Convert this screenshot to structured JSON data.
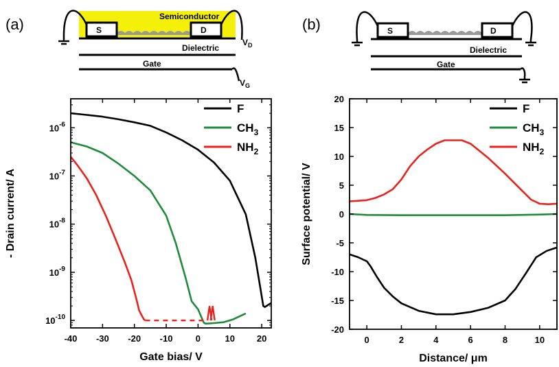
{
  "panel_a": {
    "label": "(a)",
    "device": {
      "semiconductor": "Semiconductor",
      "source": "S",
      "drain": "D",
      "dielectric": "Dielectric",
      "gate": "Gate",
      "vd": "V",
      "vd_sub": "D",
      "vg": "V",
      "vg_sub": "G"
    }
  },
  "panel_b": {
    "label": "(b)",
    "device": {
      "source": "S",
      "drain": "D",
      "dielectric": "Dielectric",
      "gate": "Gate"
    }
  },
  "colors": {
    "F": "#000000",
    "CH3": "#1e8a3c",
    "NH2": "#e8221e",
    "semiconductor": "#f5f00a",
    "molecules": "#9a9a9a"
  },
  "chart_data": [
    {
      "type": "line",
      "xlabel": "Gate bias/ V",
      "ylabel": "- Drain current/ A",
      "xlim": [
        -40,
        23
      ],
      "ylim": [
        7e-11,
        4e-06
      ],
      "yscale": "log",
      "xticks": [
        -40,
        -30,
        -20,
        -10,
        0,
        10,
        20
      ],
      "yticks": [
        {
          "value": 1e-06,
          "base": "10",
          "exp": "-6"
        },
        {
          "value": 1e-07,
          "base": "10",
          "exp": "-7"
        },
        {
          "value": 1e-08,
          "base": "10",
          "exp": "-8"
        },
        {
          "value": 1e-09,
          "base": "10",
          "exp": "-9"
        },
        {
          "value": 1e-10,
          "base": "10",
          "exp": "-10"
        }
      ],
      "legend_position": "top-right",
      "series": [
        {
          "name": "F",
          "sub": "",
          "color_key": "F",
          "x": [
            -40,
            -35,
            -30,
            -25,
            -20,
            -15,
            -10,
            -5,
            0,
            5,
            10,
            15,
            18,
            19.5,
            20.5,
            21,
            22,
            23
          ],
          "y": [
            2e-06,
            1.85e-06,
            1.7e-06,
            1.5e-06,
            1.3e-06,
            1.1e-06,
            8e-07,
            5.5e-07,
            3.5e-07,
            1.9e-07,
            8e-08,
            1.6e-08,
            2e-09,
            5e-10,
            2e-10,
            1.9e-10,
            2.1e-10,
            2.3e-10
          ]
        },
        {
          "name": "CH",
          "sub": "3",
          "color_key": "CH3",
          "x": [
            -40,
            -35,
            -30,
            -25,
            -20,
            -15,
            -10,
            -7,
            -4,
            -2,
            0,
            1,
            1.8,
            2.3,
            3,
            5,
            8,
            11,
            15
          ],
          "y": [
            5e-07,
            4.1e-07,
            3e-07,
            1.8e-07,
            1e-07,
            5e-08,
            1.5e-08,
            4e-09,
            8e-10,
            2.5e-10,
            1.7e-10,
            1.2e-10,
            9e-11,
            8.6e-11,
            8.6e-11,
            8.8e-11,
            9.2e-11,
            1.05e-10,
            1.4e-10
          ]
        },
        {
          "name": "NH",
          "sub": "2",
          "color_key": "NH2",
          "x": [
            -40,
            -38,
            -35,
            -32,
            -29,
            -26,
            -23,
            -21,
            -19.5,
            -18.5,
            -17.5,
            -17,
            -16.6
          ],
          "y": [
            2.5e-07,
            1.7e-07,
            9e-08,
            4e-08,
            1.5e-08,
            5e-09,
            1.6e-09,
            7e-10,
            3e-10,
            1.6e-10,
            1.2e-10,
            1.05e-10,
            1e-10
          ],
          "dashed_x": [
            -16.6,
            3
          ],
          "dashed_y": 1e-10,
          "spikes_x": [
            3.6,
            4.6
          ],
          "spike_top": 2e-10
        }
      ]
    },
    {
      "type": "line",
      "xlabel": "Distance/ μm",
      "ylabel": "Surface potential/ V",
      "xlim": [
        -1,
        11
      ],
      "ylim": [
        -20,
        20
      ],
      "xticks": [
        0,
        2,
        4,
        6,
        8,
        10
      ],
      "yticks": [
        20,
        15,
        10,
        5,
        0,
        -5,
        -10,
        -15,
        -20
      ],
      "legend_position": "top-right",
      "series": [
        {
          "name": "F",
          "sub": "",
          "color_key": "F",
          "x": [
            -1,
            -0.5,
            0,
            0.2,
            0.6,
            1,
            1.5,
            2,
            3,
            4,
            5,
            6,
            7,
            8,
            8.6,
            9.2,
            9.8,
            10.4,
            11
          ],
          "y": [
            -7,
            -7.5,
            -8.2,
            -9,
            -11,
            -12.8,
            -14.3,
            -15.5,
            -16.8,
            -17.4,
            -17.4,
            -17,
            -16.3,
            -15,
            -13,
            -10.3,
            -7.5,
            -6.4,
            -5.8
          ]
        },
        {
          "name": "CH",
          "sub": "3",
          "color_key": "CH3",
          "x": [
            -1,
            0,
            2,
            4,
            6,
            8,
            10,
            11
          ],
          "y": [
            0,
            -0.15,
            -0.2,
            -0.2,
            -0.2,
            -0.2,
            -0.1,
            0
          ]
        },
        {
          "name": "NH",
          "sub": "2",
          "color_key": "NH2",
          "x": [
            -1,
            -0.5,
            0,
            0.5,
            1,
            1.5,
            2,
            2.5,
            3,
            3.5,
            4,
            4.5,
            5,
            5.5,
            6,
            6.5,
            7,
            7.5,
            8,
            8.5,
            9,
            9.5,
            10,
            10.5,
            11
          ],
          "y": [
            2.2,
            2.3,
            2.4,
            2.8,
            3.4,
            4.3,
            6,
            8.3,
            10,
            11.2,
            12.2,
            12.8,
            12.8,
            12.8,
            12.2,
            11,
            9.8,
            8.4,
            7,
            5.5,
            4,
            2.5,
            1.8,
            1.7,
            1.8
          ]
        }
      ]
    }
  ]
}
